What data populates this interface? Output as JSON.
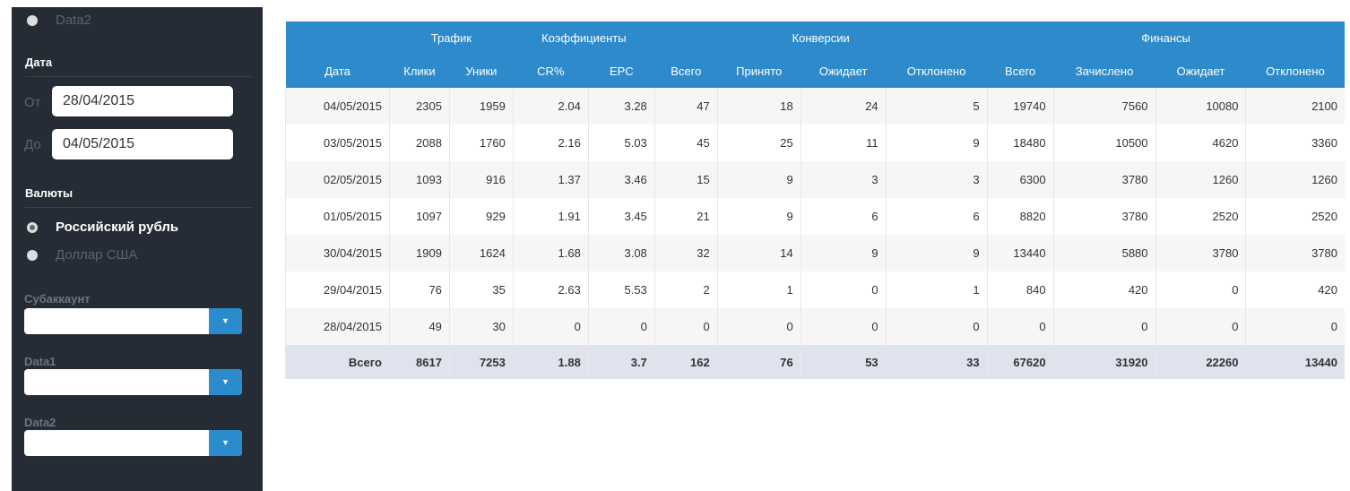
{
  "sidebar": {
    "top_radio": "Data2",
    "date_title": "Дата",
    "from_label": "От",
    "from_value": "28/04/2015",
    "to_label": "До",
    "to_value": "04/05/2015",
    "currency_title": "Валюты",
    "currencies": [
      {
        "label": "Российский рубль",
        "selected": true
      },
      {
        "label": "Доллар США",
        "selected": false
      }
    ],
    "selects": [
      {
        "label": "Субаккаунт",
        "value": ""
      },
      {
        "label": "Data1",
        "value": ""
      },
      {
        "label": "Data2",
        "value": ""
      }
    ]
  },
  "table": {
    "groups": [
      "",
      "Трафик",
      "Коэффициенты",
      "Конверсии",
      "Финансы"
    ],
    "columns": [
      "Дата",
      "Клики",
      "Уники",
      "CR%",
      "EPC",
      "Всего",
      "Принято",
      "Ожидает",
      "Отклонено",
      "Всего",
      "Зачислено",
      "Ожидает",
      "Отклонено"
    ],
    "rows": [
      [
        "04/05/2015",
        "2305",
        "1959",
        "2.04",
        "3.28",
        "47",
        "18",
        "24",
        "5",
        "19740",
        "7560",
        "10080",
        "2100"
      ],
      [
        "03/05/2015",
        "2088",
        "1760",
        "2.16",
        "5.03",
        "45",
        "25",
        "11",
        "9",
        "18480",
        "10500",
        "4620",
        "3360"
      ],
      [
        "02/05/2015",
        "1093",
        "916",
        "1.37",
        "3.46",
        "15",
        "9",
        "3",
        "3",
        "6300",
        "3780",
        "1260",
        "1260"
      ],
      [
        "01/05/2015",
        "1097",
        "929",
        "1.91",
        "3.45",
        "21",
        "9",
        "6",
        "6",
        "8820",
        "3780",
        "2520",
        "2520"
      ],
      [
        "30/04/2015",
        "1909",
        "1624",
        "1.68",
        "3.08",
        "32",
        "14",
        "9",
        "9",
        "13440",
        "5880",
        "3780",
        "3780"
      ],
      [
        "29/04/2015",
        "76",
        "35",
        "2.63",
        "5.53",
        "2",
        "1",
        "0",
        "1",
        "840",
        "420",
        "0",
        "420"
      ],
      [
        "28/04/2015",
        "49",
        "30",
        "0",
        "0",
        "0",
        "0",
        "0",
        "0",
        "0",
        "0",
        "0",
        "0"
      ]
    ],
    "total": [
      "Всего",
      "8617",
      "7253",
      "1.88",
      "3.7",
      "162",
      "76",
      "53",
      "33",
      "67620",
      "31920",
      "22260",
      "13440"
    ]
  },
  "colors": {
    "header": "#2d8bcb",
    "sidebar": "#262c35",
    "total_row": "#dfe3ee"
  }
}
